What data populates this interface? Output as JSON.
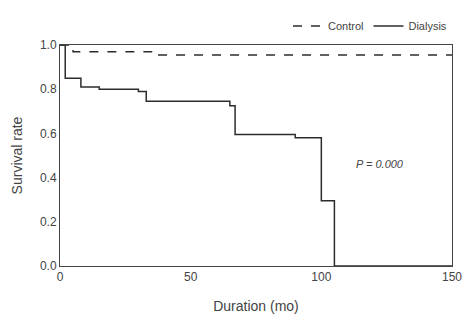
{
  "chart_data": {
    "type": "line",
    "xlabel": "Duration (mo)",
    "ylabel": "Survival rate",
    "series": [
      {
        "name": "Control",
        "color": "#2c2c2c",
        "line_style": "dashed",
        "x": [
          0,
          5,
          5,
          35,
          35,
          150
        ],
        "values": [
          1.0,
          1.0,
          0.97,
          0.97,
          0.955,
          0.955
        ]
      },
      {
        "name": "Dialysis",
        "color": "#2c2c2c",
        "line_style": "solid",
        "x": [
          0,
          2,
          2,
          8,
          8,
          15,
          15,
          30,
          30,
          33,
          33,
          65,
          65,
          67,
          67,
          90,
          90,
          100,
          100,
          105,
          105,
          150
        ],
        "values": [
          1.0,
          1.0,
          0.85,
          0.85,
          0.81,
          0.81,
          0.8,
          0.8,
          0.79,
          0.79,
          0.745,
          0.745,
          0.725,
          0.725,
          0.595,
          0.595,
          0.58,
          0.58,
          0.295,
          0.295,
          0.0,
          0.0
        ]
      }
    ],
    "annotations": [
      "P = 0.000"
    ],
    "xlim": [
      0,
      150
    ],
    "ylim": [
      0.0,
      1.0
    ],
    "xticks": [
      0,
      50,
      100,
      150
    ],
    "yticks": [
      {
        "value": 0.0,
        "label": "0.0"
      },
      {
        "value": 0.2,
        "label": "0.2"
      },
      {
        "value": 0.4,
        "label": "0.4"
      },
      {
        "value": 0.6,
        "label": "0.6"
      },
      {
        "value": 0.8,
        "label": "0.8"
      },
      {
        "value": 1.0,
        "label": "1.0"
      }
    ],
    "grid": false,
    "legend": "upper right"
  }
}
